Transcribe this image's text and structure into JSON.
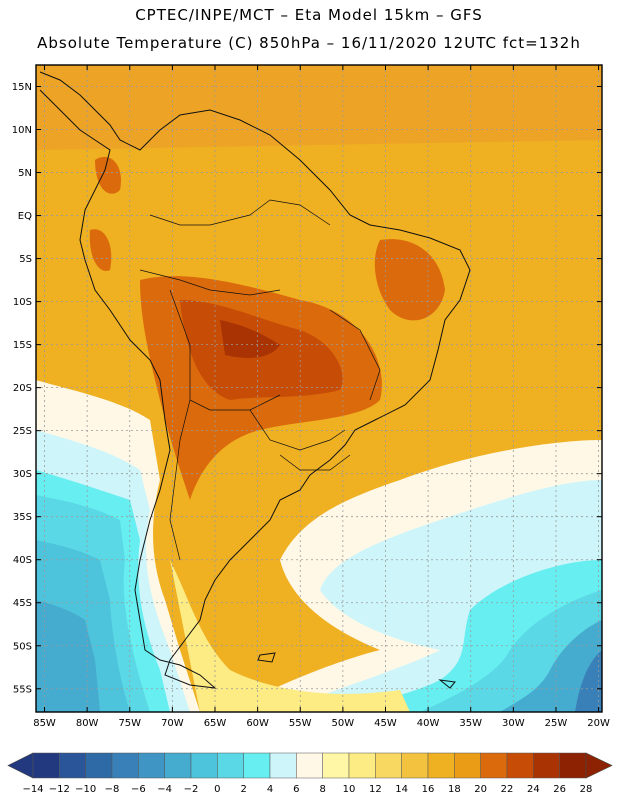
{
  "header": {
    "line1": "CPTEC/INPE/MCT –  Eta Model 15km – GFS",
    "line2": "Absolute Temperature (C) 850hPa – 16/11/2020 12UTC fct=132h"
  },
  "map": {
    "lat_ticks": [
      "15N",
      "10N",
      "5N",
      "EQ",
      "5S",
      "10S",
      "15S",
      "20S",
      "25S",
      "30S",
      "35S",
      "40S",
      "45S",
      "50S",
      "55S"
    ],
    "lon_ticks": [
      "85W",
      "80W",
      "75W",
      "70W",
      "65W",
      "60W",
      "55W",
      "50W",
      "45W",
      "40W",
      "35W",
      "30W",
      "25W",
      "20W"
    ],
    "lat_values": [
      15,
      10,
      5,
      0,
      -5,
      -10,
      -15,
      -20,
      -25,
      -30,
      -35,
      -40,
      -45,
      -50,
      -55
    ],
    "lon_values": [
      -85,
      -80,
      -75,
      -70,
      -65,
      -60,
      -55,
      -50,
      -45,
      -40,
      -35,
      -30,
      -25,
      -20
    ]
  },
  "colorbar": {
    "labels": [
      "-14",
      "-12",
      "-10",
      "-8",
      "-6",
      "-4",
      "-2",
      "0",
      "2",
      "4",
      "6",
      "8",
      "10",
      "12",
      "14",
      "16",
      "18",
      "20",
      "22",
      "24",
      "26",
      "28"
    ],
    "colors": [
      "#23397f",
      "#2a5598",
      "#2e6aa6",
      "#3a80b8",
      "#3f96c5",
      "#45abcf",
      "#4ec3dc",
      "#5bd8e6",
      "#66eef0",
      "#cdf5fa",
      "#fff8e6",
      "#fff6a6",
      "#fdeb84",
      "#f8d860",
      "#f3c340",
      "#efb022",
      "#eb9c17",
      "#db6a0c",
      "#c74d06",
      "#aa3303",
      "#8c2202"
    ]
  },
  "legend_colors": {
    "land_dark": "#c9611a",
    "ocean_base": "#efb022"
  }
}
